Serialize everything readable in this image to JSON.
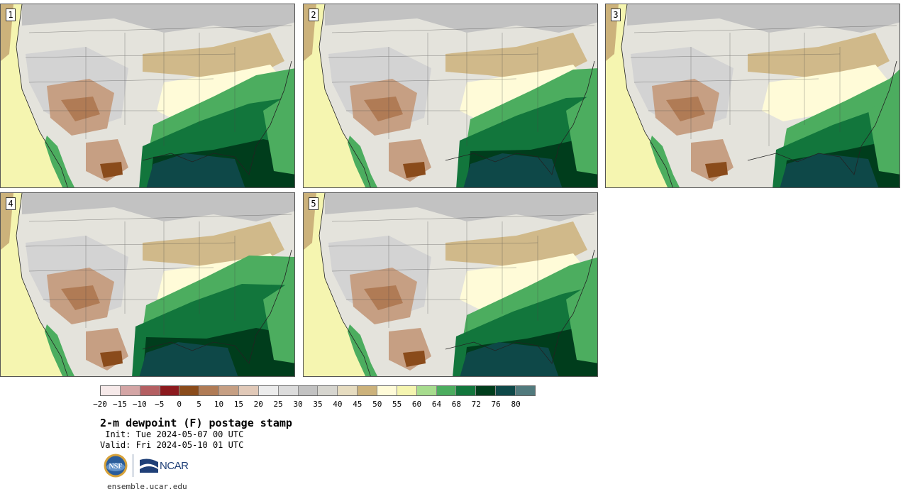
{
  "stamps": [
    {
      "label": "1"
    },
    {
      "label": "2"
    },
    {
      "label": "3"
    },
    {
      "label": "4"
    },
    {
      "label": "5"
    }
  ],
  "colorbar": {
    "colors": [
      "#f6e9e9",
      "#d4a5a5",
      "#b45f62",
      "#8c1a1e",
      "#8a4b1b",
      "#b07b55",
      "#c69f83",
      "#e1c9b8",
      "#ececec",
      "#dcdcdc",
      "#c2c2c2",
      "#d6d5cf",
      "#e6dcc0",
      "#ccb27b",
      "#fffbd8",
      "#f5f5b0",
      "#a7dc8e",
      "#4cad5f",
      "#12763c",
      "#003d1c",
      "#0e4848",
      "#517a7d"
    ],
    "tick_labels": [
      "−20",
      "−15",
      "−10",
      "−5",
      "0",
      "5",
      "10",
      "15",
      "20",
      "25",
      "30",
      "35",
      "40",
      "45",
      "50",
      "55",
      "60",
      "64",
      "68",
      "72",
      "76",
      "80"
    ]
  },
  "title": "2-m dewpoint (F) postage stamp",
  "init": " Init: Tue 2024-05-07 00 UTC",
  "valid": "Valid: Fri 2024-05-10 01 UTC",
  "logos": {
    "nsf_text": "NSF",
    "ncar_text": "NCAR"
  },
  "footer_url": "ensemble.ucar.edu"
}
